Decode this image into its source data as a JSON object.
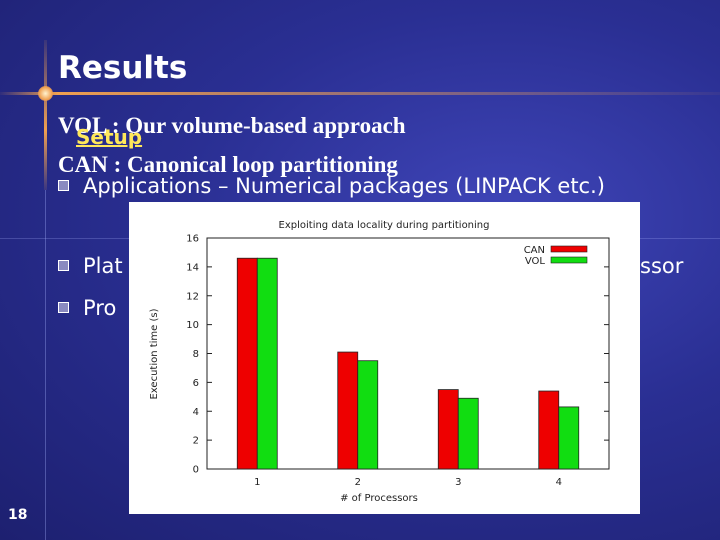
{
  "slide": {
    "title": "Results",
    "vol_line": "VOL : Our volume-based approach",
    "setup_label": "Setup",
    "can_line": "CAN : Canonical loop partitioning",
    "bullets": [
      "Applications – Numerical packages (LINPACK etc.)",
      "Plat",
      "Pro"
    ],
    "bullet_right_fragment": "ssor",
    "page_number": "18"
  },
  "chart_data": {
    "type": "bar",
    "title": "Exploiting data locality during partitioning",
    "xlabel": "# of Processors",
    "ylabel": "Execution time (s)",
    "categories": [
      "1",
      "2",
      "3",
      "4"
    ],
    "ylim": [
      0,
      16
    ],
    "yticks": [
      "0",
      "2",
      "4",
      "6",
      "8",
      "10",
      "12",
      "14",
      "16"
    ],
    "legend_placement": "top-right",
    "series": [
      {
        "name": "CAN",
        "color": "#ee0000",
        "values": [
          14.6,
          8.1,
          5.5,
          5.4
        ]
      },
      {
        "name": "VOL",
        "color": "#11dd11",
        "values": [
          14.6,
          7.5,
          4.9,
          4.3
        ]
      }
    ]
  }
}
